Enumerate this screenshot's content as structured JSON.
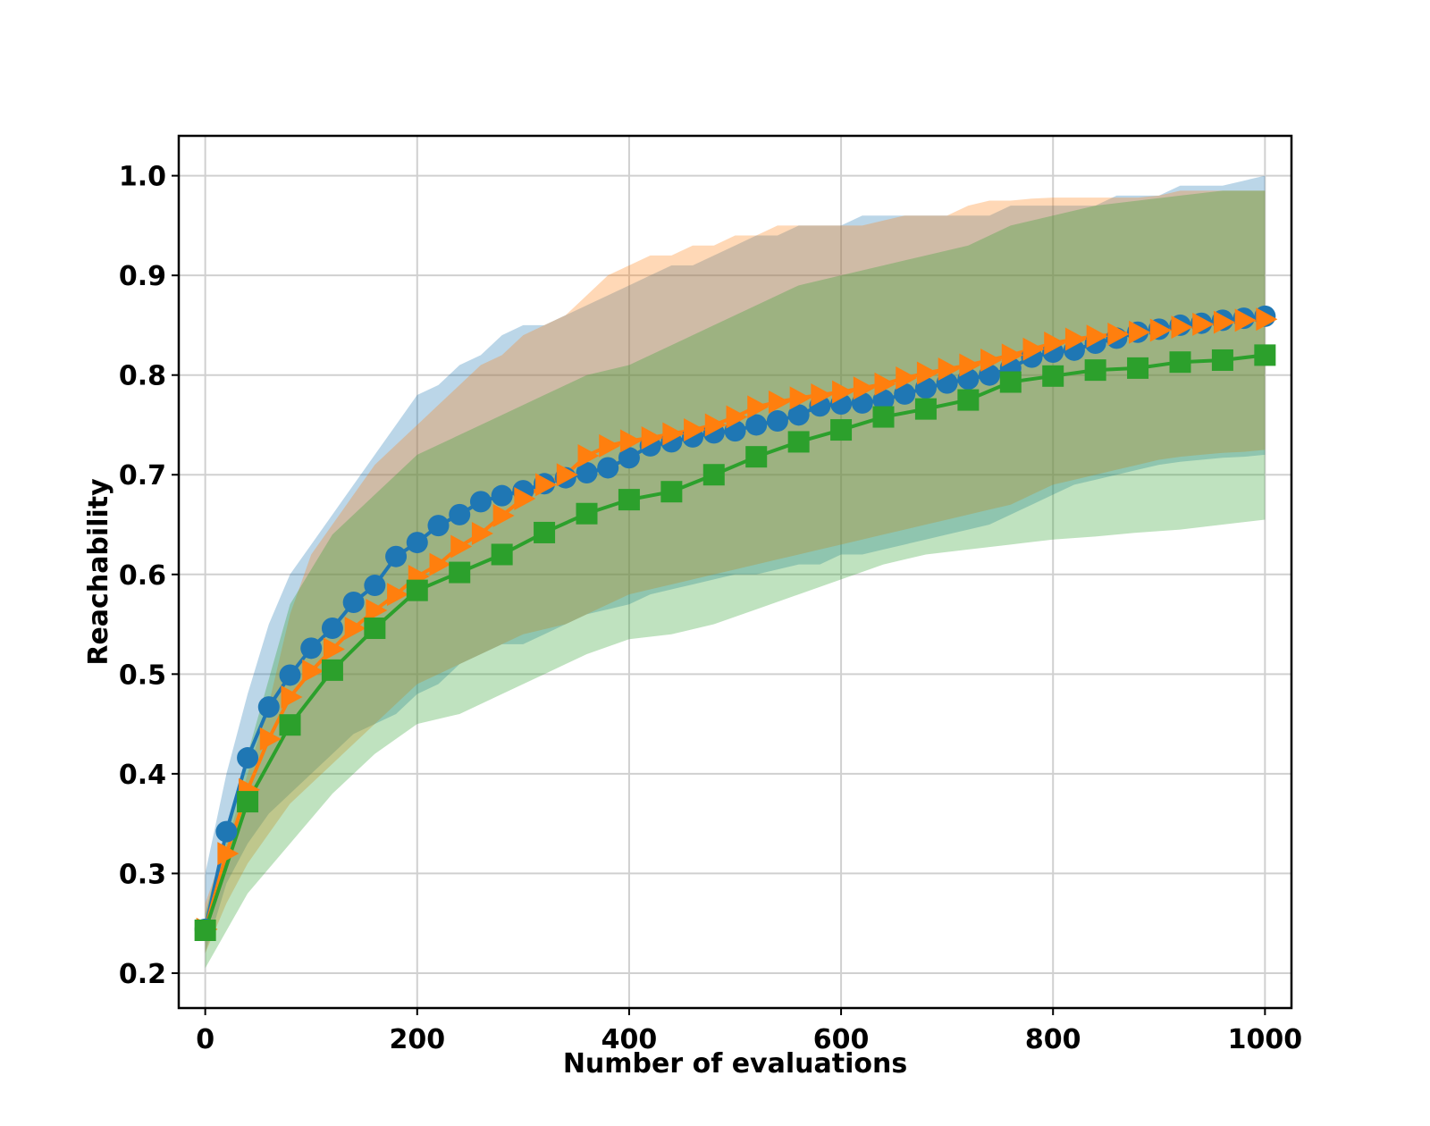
{
  "chart_data": {
    "type": "line",
    "title": "",
    "xlabel": "Number of evaluations",
    "ylabel": "Reachability",
    "xlim": [
      -25,
      1025
    ],
    "ylim": [
      0.165,
      1.04
    ],
    "xticks": [
      0,
      200,
      400,
      600,
      800,
      1000
    ],
    "yticks": [
      0.2,
      0.3,
      0.4,
      0.5,
      0.6,
      0.7,
      0.8,
      0.9,
      1.0
    ],
    "xtick_labels": [
      "0",
      "200",
      "400",
      "600",
      "800",
      "1000"
    ],
    "ytick_labels": [
      "0.2",
      "0.3",
      "0.4",
      "0.5",
      "0.6",
      "0.7",
      "0.8",
      "0.9",
      "1.0"
    ],
    "grid": true,
    "series": [
      {
        "name": "blue",
        "color": "#1f77b4",
        "marker": "circle",
        "x": [
          0,
          20,
          40,
          60,
          80,
          100,
          120,
          140,
          160,
          180,
          200,
          220,
          240,
          260,
          280,
          300,
          320,
          340,
          360,
          380,
          400,
          420,
          440,
          460,
          480,
          500,
          520,
          540,
          560,
          580,
          600,
          620,
          640,
          660,
          680,
          700,
          720,
          740,
          760,
          780,
          800,
          820,
          840,
          860,
          880,
          900,
          920,
          940,
          960,
          980,
          1000
        ],
        "y": [
          0.244,
          0.342,
          0.416,
          0.467,
          0.499,
          0.526,
          0.546,
          0.572,
          0.589,
          0.618,
          0.632,
          0.649,
          0.66,
          0.673,
          0.679,
          0.684,
          0.691,
          0.697,
          0.702,
          0.707,
          0.717,
          0.729,
          0.733,
          0.738,
          0.742,
          0.744,
          0.75,
          0.754,
          0.76,
          0.769,
          0.771,
          0.772,
          0.775,
          0.781,
          0.787,
          0.792,
          0.796,
          0.8,
          0.807,
          0.818,
          0.823,
          0.825,
          0.832,
          0.837,
          0.843,
          0.846,
          0.85,
          0.852,
          0.855,
          0.857,
          0.859
        ],
        "band_upper": [
          0.3,
          0.4,
          0.48,
          0.55,
          0.6,
          0.63,
          0.66,
          0.69,
          0.72,
          0.75,
          0.78,
          0.79,
          0.81,
          0.82,
          0.84,
          0.85,
          0.85,
          0.86,
          0.87,
          0.88,
          0.89,
          0.9,
          0.91,
          0.91,
          0.92,
          0.93,
          0.94,
          0.94,
          0.95,
          0.95,
          0.95,
          0.96,
          0.96,
          0.96,
          0.96,
          0.96,
          0.96,
          0.96,
          0.97,
          0.97,
          0.97,
          0.97,
          0.97,
          0.98,
          0.98,
          0.98,
          0.99,
          0.99,
          0.99,
          0.995,
          1.0
        ],
        "band_lower": [
          0.22,
          0.29,
          0.33,
          0.36,
          0.38,
          0.4,
          0.42,
          0.44,
          0.45,
          0.46,
          0.48,
          0.49,
          0.51,
          0.52,
          0.53,
          0.53,
          0.54,
          0.55,
          0.56,
          0.565,
          0.57,
          0.58,
          0.585,
          0.59,
          0.595,
          0.6,
          0.6,
          0.605,
          0.61,
          0.61,
          0.62,
          0.62,
          0.625,
          0.63,
          0.635,
          0.64,
          0.645,
          0.65,
          0.66,
          0.67,
          0.68,
          0.69,
          0.695,
          0.7,
          0.705,
          0.71,
          0.713,
          0.715,
          0.717,
          0.718,
          0.72
        ]
      },
      {
        "name": "orange",
        "color": "#ff7f0e",
        "marker": "triangle-right",
        "x": [
          0,
          20,
          40,
          60,
          80,
          100,
          120,
          140,
          160,
          180,
          200,
          220,
          240,
          260,
          280,
          300,
          320,
          340,
          360,
          380,
          400,
          420,
          440,
          460,
          480,
          500,
          520,
          540,
          560,
          580,
          600,
          620,
          640,
          660,
          680,
          700,
          720,
          740,
          760,
          780,
          800,
          820,
          840,
          860,
          880,
          900,
          920,
          940,
          960,
          980,
          1000
        ],
        "y": [
          0.244,
          0.32,
          0.384,
          0.435,
          0.477,
          0.503,
          0.525,
          0.546,
          0.564,
          0.58,
          0.598,
          0.61,
          0.628,
          0.641,
          0.659,
          0.676,
          0.69,
          0.7,
          0.719,
          0.729,
          0.734,
          0.737,
          0.741,
          0.745,
          0.75,
          0.758,
          0.768,
          0.773,
          0.777,
          0.78,
          0.783,
          0.787,
          0.791,
          0.797,
          0.802,
          0.806,
          0.81,
          0.815,
          0.82,
          0.826,
          0.832,
          0.836,
          0.839,
          0.841,
          0.843,
          0.845,
          0.848,
          0.851,
          0.853,
          0.855,
          0.856
        ],
        "band_upper": [
          0.27,
          0.33,
          0.4,
          0.47,
          0.56,
          0.62,
          0.65,
          0.68,
          0.71,
          0.73,
          0.75,
          0.77,
          0.79,
          0.81,
          0.82,
          0.84,
          0.85,
          0.86,
          0.88,
          0.9,
          0.91,
          0.92,
          0.92,
          0.93,
          0.93,
          0.94,
          0.94,
          0.95,
          0.95,
          0.95,
          0.95,
          0.95,
          0.955,
          0.96,
          0.96,
          0.96,
          0.97,
          0.975,
          0.975,
          0.977,
          0.978,
          0.978,
          0.978,
          0.978,
          0.978,
          0.98,
          0.985,
          0.985,
          0.985,
          0.985,
          0.985
        ],
        "band_lower": [
          0.22,
          0.27,
          0.31,
          0.34,
          0.37,
          0.39,
          0.41,
          0.43,
          0.45,
          0.47,
          0.49,
          0.5,
          0.51,
          0.52,
          0.53,
          0.54,
          0.545,
          0.55,
          0.56,
          0.57,
          0.58,
          0.585,
          0.59,
          0.595,
          0.6,
          0.605,
          0.61,
          0.615,
          0.62,
          0.625,
          0.63,
          0.635,
          0.64,
          0.645,
          0.65,
          0.655,
          0.66,
          0.665,
          0.67,
          0.68,
          0.69,
          0.695,
          0.7,
          0.705,
          0.71,
          0.715,
          0.718,
          0.72,
          0.722,
          0.723,
          0.725
        ]
      },
      {
        "name": "green",
        "color": "#2ca02c",
        "marker": "square",
        "x": [
          0,
          40,
          80,
          120,
          160,
          200,
          240,
          280,
          320,
          360,
          400,
          440,
          480,
          520,
          560,
          600,
          640,
          680,
          720,
          760,
          800,
          840,
          880,
          920,
          960,
          1000
        ],
        "y": [
          0.243,
          0.372,
          0.449,
          0.504,
          0.546,
          0.584,
          0.602,
          0.62,
          0.642,
          0.661,
          0.675,
          0.683,
          0.7,
          0.718,
          0.733,
          0.745,
          0.758,
          0.766,
          0.775,
          0.793,
          0.799,
          0.805,
          0.807,
          0.813,
          0.815,
          0.82
        ],
        "band_upper": [
          0.26,
          0.42,
          0.57,
          0.64,
          0.68,
          0.72,
          0.74,
          0.76,
          0.78,
          0.8,
          0.81,
          0.83,
          0.85,
          0.87,
          0.89,
          0.9,
          0.91,
          0.92,
          0.93,
          0.95,
          0.96,
          0.97,
          0.975,
          0.98,
          0.985,
          0.985
        ],
        "band_lower": [
          0.205,
          0.28,
          0.33,
          0.38,
          0.42,
          0.45,
          0.46,
          0.48,
          0.5,
          0.52,
          0.535,
          0.54,
          0.55,
          0.565,
          0.58,
          0.595,
          0.61,
          0.62,
          0.625,
          0.63,
          0.635,
          0.638,
          0.642,
          0.645,
          0.65,
          0.655
        ]
      }
    ]
  }
}
